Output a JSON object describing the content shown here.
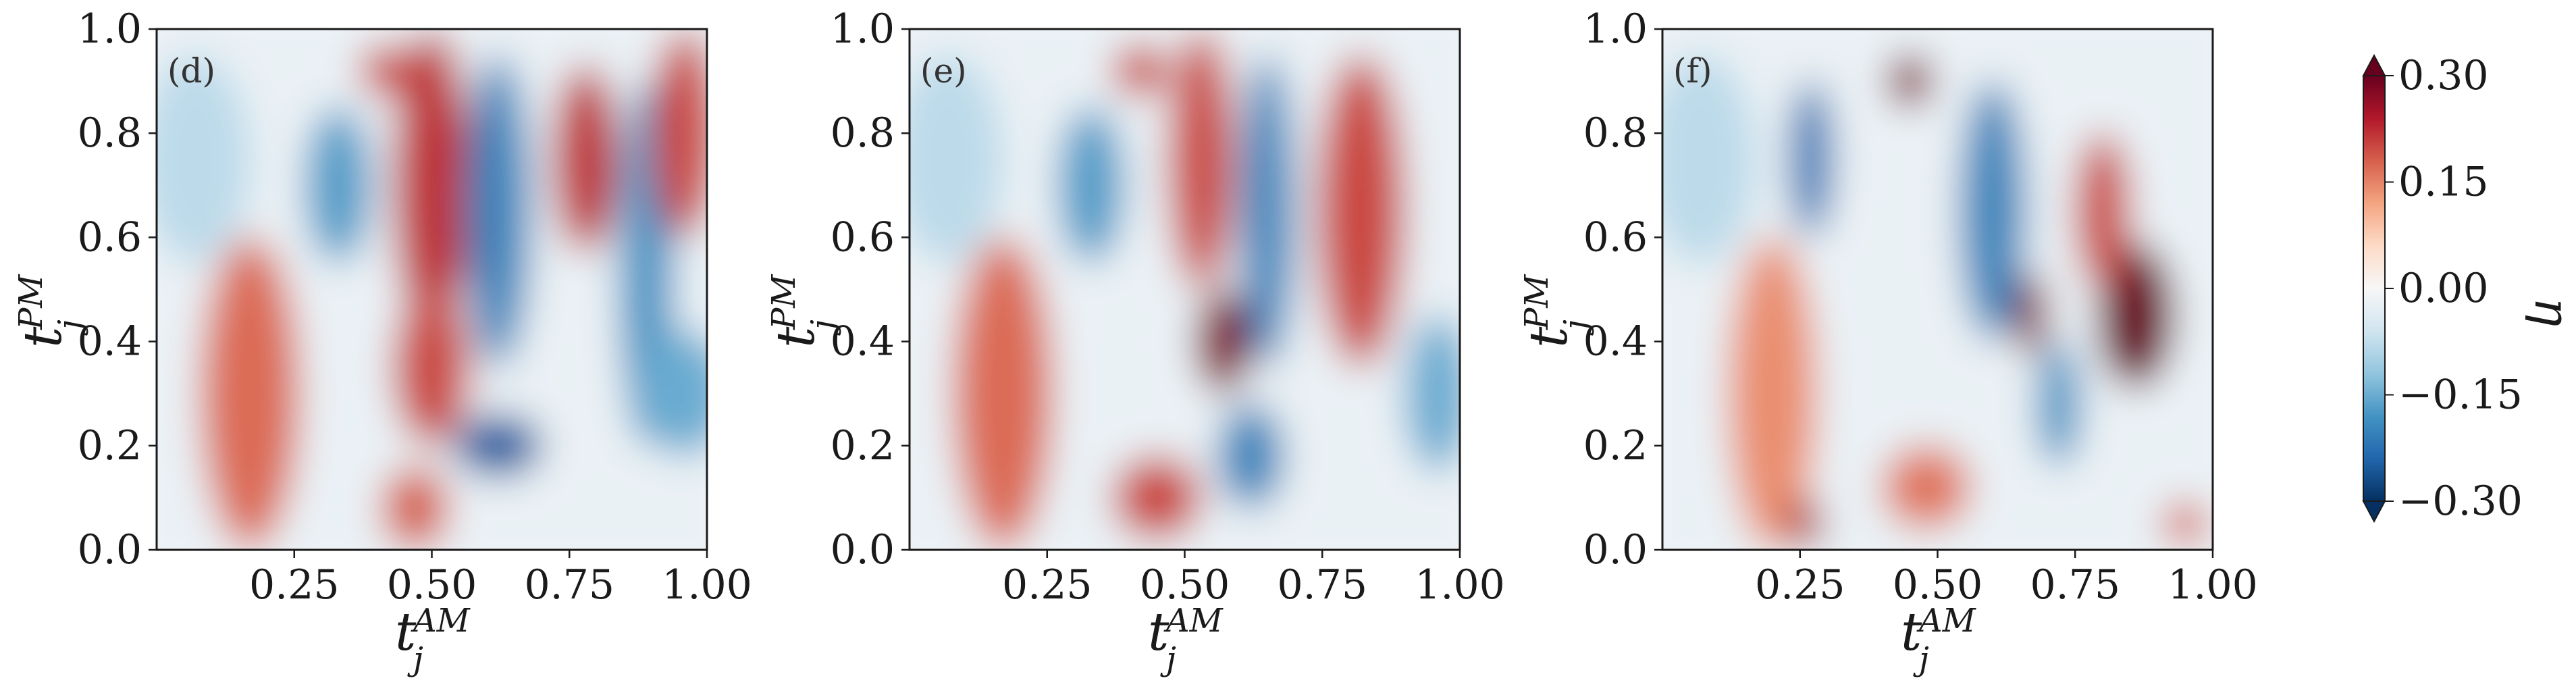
{
  "chart_data": [
    {
      "type": "heatmap",
      "panel_label": "(d)",
      "xlabel": {
        "base": "t",
        "sub": "j",
        "sup": "AM"
      },
      "ylabel": {
        "base": "t",
        "sub": "j",
        "sup": "PM"
      },
      "xlim": [
        0,
        1
      ],
      "ylim": [
        0,
        1
      ],
      "x_ticks": [
        "0.25",
        "0.50",
        "0.75",
        "1.00"
      ],
      "x_tick_values": [
        0.25,
        0.5,
        0.75,
        1.0
      ],
      "y_ticks": [
        "0.0",
        "0.2",
        "0.4",
        "0.6",
        "0.8",
        "1.0"
      ],
      "y_tick_values": [
        0.0,
        0.2,
        0.4,
        0.6,
        0.8,
        1.0
      ],
      "features": [
        {
          "x": 0.17,
          "y": 0.3,
          "w": 0.09,
          "h": 0.3,
          "v": 0.17
        },
        {
          "x": 0.33,
          "y": 0.7,
          "w": 0.06,
          "h": 0.15,
          "v": -0.17
        },
        {
          "x": 0.5,
          "y": 0.7,
          "w": 0.07,
          "h": 0.3,
          "v": 0.22
        },
        {
          "x": 0.5,
          "y": 0.35,
          "w": 0.07,
          "h": 0.15,
          "v": 0.2
        },
        {
          "x": 0.62,
          "y": 0.65,
          "w": 0.06,
          "h": 0.3,
          "v": -0.2
        },
        {
          "x": 0.62,
          "y": 0.2,
          "w": 0.08,
          "h": 0.06,
          "v": -0.25
        },
        {
          "x": 0.47,
          "y": 0.08,
          "w": 0.06,
          "h": 0.08,
          "v": 0.18
        },
        {
          "x": 0.78,
          "y": 0.75,
          "w": 0.06,
          "h": 0.18,
          "v": 0.22
        },
        {
          "x": 0.89,
          "y": 0.55,
          "w": 0.05,
          "h": 0.35,
          "v": -0.18
        },
        {
          "x": 0.96,
          "y": 0.8,
          "w": 0.06,
          "h": 0.2,
          "v": 0.2
        },
        {
          "x": 0.96,
          "y": 0.3,
          "w": 0.08,
          "h": 0.12,
          "v": -0.15
        },
        {
          "x": 0.07,
          "y": 0.75,
          "w": 0.1,
          "h": 0.2,
          "v": -0.08
        },
        {
          "x": 0.42,
          "y": 0.92,
          "w": 0.05,
          "h": 0.05,
          "v": 0.2
        }
      ]
    },
    {
      "type": "heatmap",
      "panel_label": "(e)",
      "xlabel": {
        "base": "t",
        "sub": "j",
        "sup": "AM"
      },
      "ylabel": {
        "base": "t",
        "sub": "j",
        "sup": "PM"
      },
      "xlim": [
        0,
        1
      ],
      "ylim": [
        0,
        1
      ],
      "x_ticks": [
        "0.25",
        "0.50",
        "0.75",
        "1.00"
      ],
      "x_tick_values": [
        0.25,
        0.5,
        0.75,
        1.0
      ],
      "y_ticks": [
        "0.0",
        "0.2",
        "0.4",
        "0.6",
        "0.8",
        "1.0"
      ],
      "y_tick_values": [
        0.0,
        0.2,
        0.4,
        0.6,
        0.8,
        1.0
      ],
      "features": [
        {
          "x": 0.17,
          "y": 0.3,
          "w": 0.09,
          "h": 0.3,
          "v": 0.17
        },
        {
          "x": 0.33,
          "y": 0.7,
          "w": 0.06,
          "h": 0.15,
          "v": -0.17
        },
        {
          "x": 0.57,
          "y": 0.4,
          "w": 0.05,
          "h": 0.1,
          "v": 0.28
        },
        {
          "x": 0.53,
          "y": 0.75,
          "w": 0.06,
          "h": 0.25,
          "v": 0.2
        },
        {
          "x": 0.65,
          "y": 0.65,
          "w": 0.05,
          "h": 0.3,
          "v": -0.2
        },
        {
          "x": 0.82,
          "y": 0.65,
          "w": 0.08,
          "h": 0.3,
          "v": 0.2
        },
        {
          "x": 0.45,
          "y": 0.1,
          "w": 0.08,
          "h": 0.08,
          "v": 0.2
        },
        {
          "x": 0.62,
          "y": 0.18,
          "w": 0.06,
          "h": 0.1,
          "v": -0.2
        },
        {
          "x": 0.96,
          "y": 0.3,
          "w": 0.06,
          "h": 0.15,
          "v": -0.15
        },
        {
          "x": 0.07,
          "y": 0.75,
          "w": 0.1,
          "h": 0.2,
          "v": -0.08
        },
        {
          "x": 0.42,
          "y": 0.92,
          "w": 0.05,
          "h": 0.05,
          "v": 0.2
        }
      ]
    },
    {
      "type": "heatmap",
      "panel_label": "(f)",
      "xlabel": {
        "base": "t",
        "sub": "j",
        "sup": "AM"
      },
      "ylabel": {
        "base": "t",
        "sub": "j",
        "sup": "PM"
      },
      "xlim": [
        0,
        1
      ],
      "ylim": [
        0,
        1
      ],
      "x_ticks": [
        "0.25",
        "0.50",
        "0.75",
        "1.00"
      ],
      "x_tick_values": [
        0.25,
        0.5,
        0.75,
        1.0
      ],
      "y_ticks": [
        "0.0",
        "0.2",
        "0.4",
        "0.6",
        "0.8",
        "1.0"
      ],
      "y_tick_values": [
        0.0,
        0.2,
        0.4,
        0.6,
        0.8,
        1.0
      ],
      "features": [
        {
          "x": 0.2,
          "y": 0.3,
          "w": 0.08,
          "h": 0.3,
          "v": 0.14
        },
        {
          "x": 0.26,
          "y": 0.05,
          "w": 0.03,
          "h": 0.05,
          "v": 0.25
        },
        {
          "x": 0.27,
          "y": 0.75,
          "w": 0.04,
          "h": 0.15,
          "v": -0.22
        },
        {
          "x": 0.45,
          "y": 0.9,
          "w": 0.04,
          "h": 0.05,
          "v": 0.28
        },
        {
          "x": 0.6,
          "y": 0.65,
          "w": 0.06,
          "h": 0.25,
          "v": -0.2
        },
        {
          "x": 0.67,
          "y": 0.45,
          "w": 0.03,
          "h": 0.08,
          "v": 0.28
        },
        {
          "x": 0.86,
          "y": 0.45,
          "w": 0.07,
          "h": 0.14,
          "v": 0.3
        },
        {
          "x": 0.8,
          "y": 0.65,
          "w": 0.05,
          "h": 0.15,
          "v": 0.2
        },
        {
          "x": 0.48,
          "y": 0.12,
          "w": 0.08,
          "h": 0.08,
          "v": 0.16
        },
        {
          "x": 0.72,
          "y": 0.28,
          "w": 0.04,
          "h": 0.12,
          "v": -0.18
        },
        {
          "x": 0.95,
          "y": 0.05,
          "w": 0.04,
          "h": 0.04,
          "v": 0.18
        },
        {
          "x": 0.07,
          "y": 0.75,
          "w": 0.1,
          "h": 0.2,
          "v": -0.08
        }
      ]
    }
  ],
  "colorbar": {
    "label": "η",
    "range": [
      -0.3,
      0.3
    ],
    "tick_values": [
      0.3,
      0.15,
      0.0,
      -0.15,
      -0.3
    ],
    "ticks": [
      "0.30",
      "0.15",
      "0.00",
      "−0.15",
      "−0.30"
    ],
    "colors": [
      "#053061",
      "#2166ac",
      "#4393c3",
      "#92c5de",
      "#d1e5f0",
      "#f7f7f7",
      "#fddbc7",
      "#f4a582",
      "#d6604d",
      "#b2182b",
      "#67001f"
    ]
  }
}
